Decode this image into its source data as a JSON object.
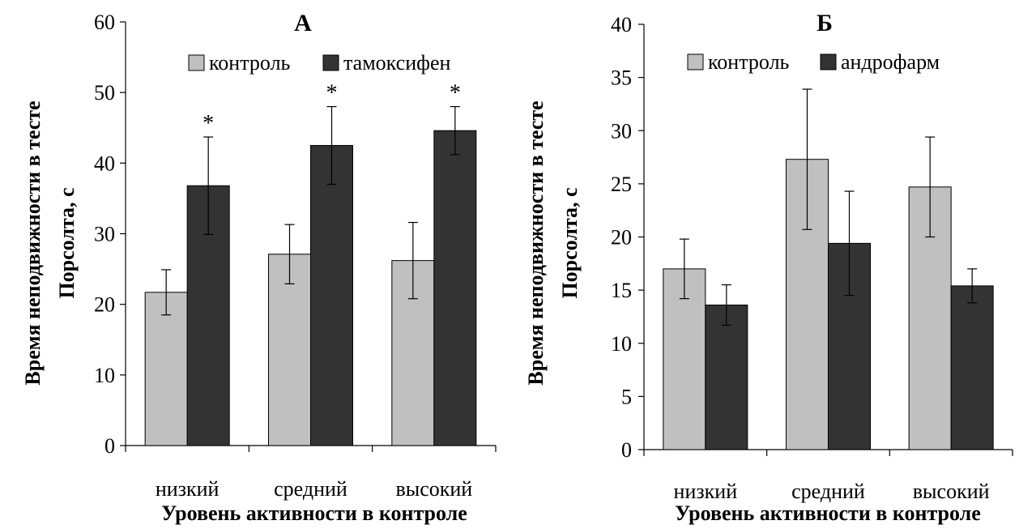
{
  "chart_data": [
    {
      "type": "bar",
      "title": "А",
      "categories": [
        "низкий",
        "средний",
        "высокий"
      ],
      "series": [
        {
          "name": "контроль",
          "values": [
            21.7,
            27.1,
            26.2
          ],
          "errors": [
            3.2,
            4.2,
            5.4
          ],
          "color": "#c0c0c0"
        },
        {
          "name": "тамоксифен",
          "values": [
            36.8,
            42.5,
            44.6
          ],
          "errors": [
            6.9,
            5.5,
            3.4
          ],
          "color": "#333333"
        }
      ],
      "significance": [
        "*",
        "*",
        "*"
      ],
      "xlabel": "Уровень активности в контроле",
      "ylabel_line1": "Время неподвижности в тесте",
      "ylabel_line2": "Порсолта, с",
      "ylim": [
        0,
        60
      ],
      "yticks": [
        0,
        10,
        20,
        30,
        40,
        50,
        60
      ],
      "grid": false,
      "legend_position": "top"
    },
    {
      "type": "bar",
      "title": "Б",
      "categories": [
        "низкий",
        "средний",
        "высокий"
      ],
      "series": [
        {
          "name": "контроль",
          "values": [
            17.0,
            27.3,
            24.7
          ],
          "errors": [
            2.8,
            6.6,
            4.7
          ],
          "color": "#c0c0c0"
        },
        {
          "name": "андрофарм",
          "values": [
            13.6,
            19.4,
            15.4
          ],
          "errors": [
            1.9,
            4.9,
            1.6
          ],
          "color": "#333333"
        }
      ],
      "xlabel": "Уровень активности в контроле",
      "ylabel_line1": "Время неподвижности в тесте",
      "ylabel_line2": "Порсолта, с",
      "ylim": [
        0,
        40
      ],
      "yticks": [
        0,
        5,
        10,
        15,
        20,
        25,
        30,
        35,
        40
      ],
      "grid": false,
      "legend_position": "top"
    }
  ]
}
